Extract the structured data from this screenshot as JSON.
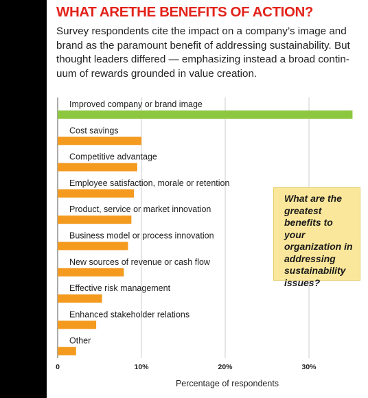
{
  "headline": "WHAT ARETHE BENEFITS OF ACTION?",
  "intro": "Survey respondents cite the impact on a company’s image and brand as the paramount benefit of addressing sustainability. But thought leaders differed — emphasizing instead a broad contin­uum of rewards grounded in value creation.",
  "callout": "What are the greatest benefits to your organization in addressing sustainability issues?",
  "colors": {
    "headline": "#e2231a",
    "highlight_bar": "#8dc63f",
    "bar": "#f39a1f",
    "callout_bg": "#fbe79b",
    "grid": "#cccccc",
    "page_bar": "#000000"
  },
  "chart_data": {
    "type": "bar",
    "orientation": "horizontal",
    "categories": [
      "Improved company or brand image",
      "Cost savings",
      "Competitive advantage",
      "Employee satisfaction, morale or retention",
      "Product, service or market innovation",
      "Business model or process innovation",
      "New sources of revenue or cash flow",
      "Effective risk management",
      "Enhanced stakeholder relations",
      "Other"
    ],
    "values": [
      35.2,
      10.0,
      9.5,
      9.1,
      8.8,
      8.4,
      7.9,
      5.3,
      4.6,
      2.2
    ],
    "xlabel": "Percentage of respondents",
    "xlim": [
      0,
      37
    ],
    "xticks": [
      0,
      10,
      20,
      30
    ],
    "xtick_labels": [
      "0",
      "10%",
      "20%",
      "30%"
    ],
    "grid": true
  }
}
